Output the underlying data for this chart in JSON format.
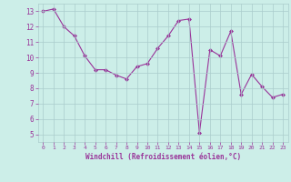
{
  "x": [
    0,
    1,
    2,
    3,
    4,
    5,
    6,
    7,
    8,
    9,
    10,
    11,
    12,
    13,
    14,
    15,
    16,
    17,
    18,
    19,
    20,
    21,
    22,
    23
  ],
  "y": [
    13.0,
    13.15,
    12.0,
    11.4,
    10.1,
    9.2,
    9.2,
    8.85,
    8.6,
    9.4,
    9.6,
    10.6,
    11.4,
    12.4,
    12.5,
    5.1,
    10.5,
    10.1,
    11.7,
    7.6,
    8.9,
    8.1,
    7.4,
    7.6
  ],
  "line_color": "#993399",
  "marker": "D",
  "marker_size": 2.0,
  "bg_color": "#cceee8",
  "grid_color": "#aacccc",
  "xlabel": "Windchill (Refroidissement éolien,°C)",
  "xlabel_color": "#993399",
  "tick_color": "#993399",
  "ylim": [
    4.5,
    13.5
  ],
  "xlim": [
    -0.5,
    23.5
  ],
  "yticks": [
    5,
    6,
    7,
    8,
    9,
    10,
    11,
    12,
    13
  ],
  "xticks": [
    0,
    1,
    2,
    3,
    4,
    5,
    6,
    7,
    8,
    9,
    10,
    11,
    12,
    13,
    14,
    15,
    16,
    17,
    18,
    19,
    20,
    21,
    22,
    23
  ],
  "xtick_labels": [
    "0",
    "1",
    "2",
    "3",
    "4",
    "5",
    "6",
    "7",
    "8",
    "9",
    "10",
    "11",
    "12",
    "13",
    "14",
    "15",
    "16",
    "17",
    "18",
    "19",
    "20",
    "21",
    "22",
    "23"
  ],
  "figure_bg": "#cceee8"
}
